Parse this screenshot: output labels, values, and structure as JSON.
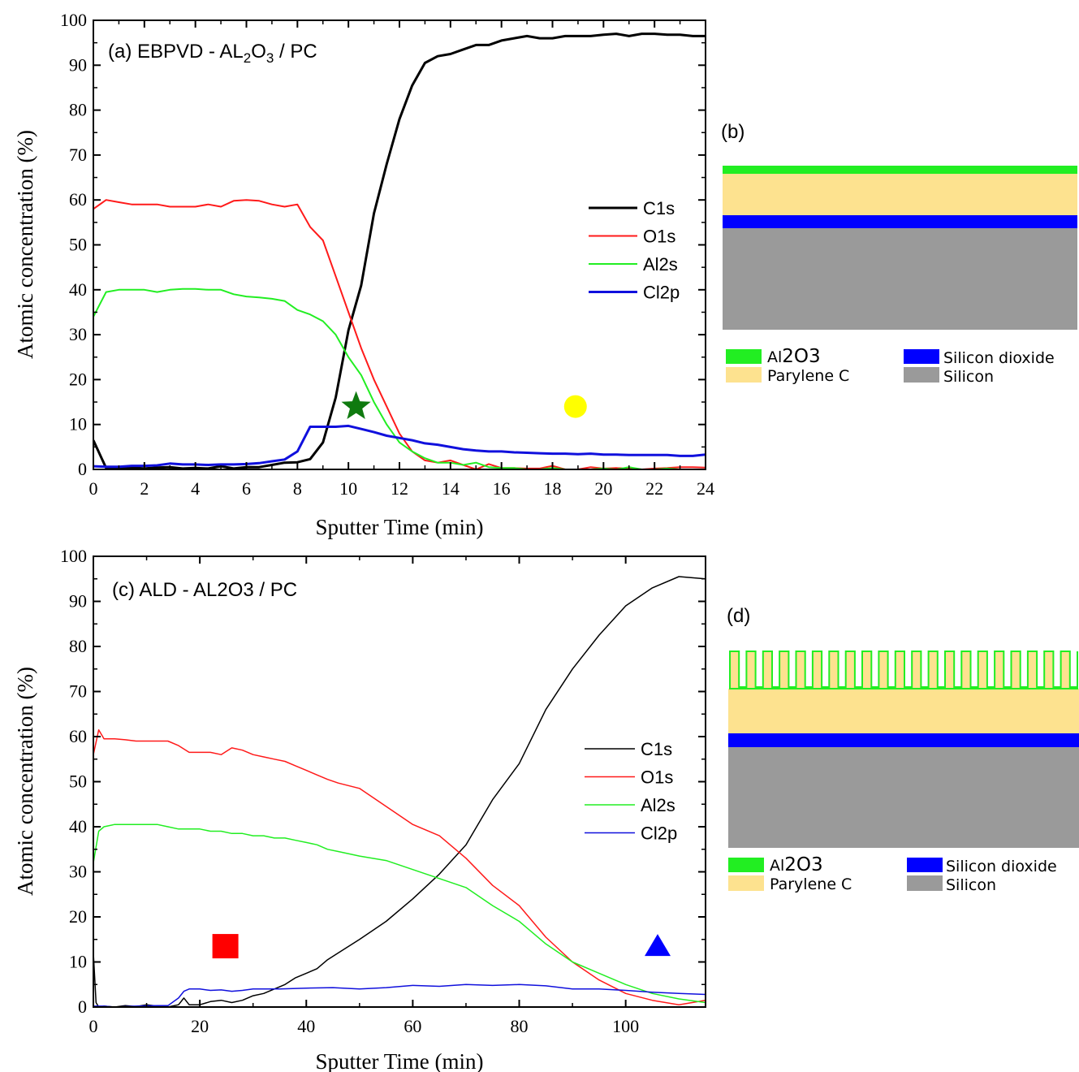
{
  "chart_data": [
    {
      "type": "line",
      "panel_label": "(a) EBPVD - AL",
      "title_sub1": "2",
      "title_mid": "O",
      "title_sub2": "3",
      "title_end": " / PC",
      "xlabel": "Sputter Time (min)",
      "ylabel": "Atomic concentration (%)",
      "xlim": [
        0,
        24
      ],
      "ylim": [
        0,
        100
      ],
      "xticks": [
        "0",
        "2",
        "4",
        "6",
        "8",
        "10",
        "12",
        "14",
        "16",
        "18",
        "20",
        "22",
        "24"
      ],
      "yticks": [
        "0",
        "10",
        "20",
        "30",
        "40",
        "50",
        "60",
        "70",
        "80",
        "90",
        "100"
      ],
      "legend_position": "center-right",
      "series": [
        {
          "name": "C1s",
          "color": "#000000",
          "width": 3,
          "x": [
            0,
            0.5,
            1,
            1.5,
            2,
            2.5,
            3,
            3.5,
            4,
            4.5,
            5,
            5.5,
            6,
            6.5,
            7,
            7.5,
            8,
            8.5,
            9,
            9.5,
            10,
            10.5,
            11,
            11.5,
            12,
            12.5,
            13,
            13.5,
            14,
            14.5,
            15,
            15.5,
            16,
            16.5,
            17,
            17.5,
            18,
            18.5,
            19,
            19.5,
            20,
            20.5,
            21,
            21.5,
            22,
            22.5,
            23,
            23.5,
            24
          ],
          "y": [
            6.5,
            0.3,
            0.3,
            0.4,
            0.2,
            0.4,
            0.5,
            0.2,
            0.3,
            0.2,
            0.7,
            0.2,
            0.5,
            0.5,
            1.0,
            1.5,
            1.6,
            2.3,
            6,
            16,
            31,
            41,
            57,
            68,
            78,
            85.5,
            90.5,
            92,
            92.5,
            93.5,
            94.5,
            94.5,
            95.5,
            96,
            96.5,
            96,
            96,
            96.5,
            96.5,
            96.5,
            96.8,
            97,
            96.5,
            97,
            97,
            96.8,
            96.8,
            96.5,
            96.5
          ]
        },
        {
          "name": "O1s",
          "color": "#ff1a1a",
          "width": 2,
          "x": [
            0,
            0.5,
            1,
            1.5,
            2,
            2.5,
            3,
            3.5,
            4,
            4.5,
            5,
            5.5,
            6,
            6.5,
            7,
            7.5,
            8,
            8.5,
            9,
            9.5,
            10,
            10.5,
            11,
            11.5,
            12,
            12.5,
            13,
            13.5,
            14,
            14.5,
            15,
            15.5,
            16,
            16.5,
            17,
            17.5,
            18,
            18.5,
            19,
            19.5,
            20,
            20.5,
            21,
            21.5,
            22,
            22.5,
            23,
            23.5,
            24
          ],
          "y": [
            58,
            60,
            59.5,
            59,
            59,
            59,
            58.5,
            58.5,
            58.5,
            59,
            58.5,
            59.8,
            60,
            59.8,
            59,
            58.5,
            59,
            54,
            51,
            43,
            35,
            27,
            20,
            14,
            8,
            4,
            2,
            1.5,
            2,
            1,
            0,
            1.2,
            0.3,
            0.3,
            0.2,
            0.2,
            0.8,
            0,
            0,
            0.5,
            0.2,
            0.3,
            0.2,
            0,
            0.2,
            0.3,
            0.5,
            0.5,
            0.4
          ]
        },
        {
          "name": "Al2s",
          "color": "#22ee22",
          "width": 2,
          "x": [
            0,
            0.5,
            1,
            1.5,
            2,
            2.5,
            3,
            3.5,
            4,
            4.5,
            5,
            5.5,
            6,
            6.5,
            7,
            7.5,
            8,
            8.5,
            9,
            9.5,
            10,
            10.5,
            11,
            11.5,
            12,
            12.5,
            13,
            13.5,
            14,
            14.5,
            15,
            15.5,
            16,
            16.5,
            17,
            17.5,
            18,
            18.5,
            19,
            19.5,
            20,
            20.5,
            21,
            21.5,
            22,
            22.5,
            23,
            23.5,
            24
          ],
          "y": [
            34,
            39.5,
            40,
            40,
            40,
            39.5,
            40,
            40.2,
            40.2,
            40,
            40,
            39,
            38.5,
            38.3,
            38,
            37.5,
            35.5,
            34.5,
            33,
            30,
            25,
            21,
            15,
            10,
            6,
            4,
            2.5,
            1.5,
            1.5,
            1,
            1.5,
            0.5,
            0.3,
            0.3,
            0,
            0,
            0.3,
            0,
            0,
            0,
            0.2,
            0,
            0.5,
            0,
            0,
            0.2,
            0,
            0,
            0
          ]
        },
        {
          "name": "Cl2p",
          "color": "#1010dd",
          "width": 3,
          "x": [
            0,
            0.5,
            1,
            1.5,
            2,
            2.5,
            3,
            3.5,
            4,
            4.5,
            5,
            5.5,
            6,
            6.5,
            7,
            7.5,
            8,
            8.5,
            9,
            9.5,
            10,
            10.5,
            11,
            11.5,
            12,
            12.5,
            13,
            13.5,
            14,
            14.5,
            15,
            15.5,
            16,
            16.5,
            17,
            17.5,
            18,
            18.5,
            19,
            19.5,
            20,
            20.5,
            21,
            21.5,
            22,
            22.5,
            23,
            23.5,
            24
          ],
          "y": [
            0.7,
            0.6,
            0.6,
            0.8,
            0.8,
            0.9,
            1.3,
            1.1,
            1.1,
            1.0,
            1.1,
            1.1,
            1.2,
            1.4,
            1.8,
            2.2,
            4,
            9.5,
            9.5,
            9.5,
            9.7,
            9,
            8.3,
            7.5,
            7,
            6.5,
            5.8,
            5.5,
            5,
            4.5,
            4.2,
            4,
            4,
            3.8,
            3.7,
            3.6,
            3.5,
            3.5,
            3.4,
            3.5,
            3.3,
            3.3,
            3.2,
            3.2,
            3.2,
            3.2,
            3,
            3,
            3.3
          ]
        }
      ],
      "markers": [
        {
          "shape": "star",
          "x": 10.3,
          "y": 14,
          "color": "#0f7a0f"
        },
        {
          "shape": "circle",
          "x": 18.9,
          "y": 14,
          "color": "#ffff00"
        }
      ]
    },
    {
      "type": "line",
      "panel_label": "(c) ALD - AL2O3 / PC",
      "xlabel": "Sputter Time (min)",
      "ylabel": "Atomic concentration (%)",
      "xlim": [
        0,
        115
      ],
      "ylim": [
        0,
        100
      ],
      "xticks": [
        "0",
        "20",
        "40",
        "60",
        "80",
        "100"
      ],
      "yticks": [
        "0",
        "10",
        "20",
        "30",
        "40",
        "50",
        "60",
        "70",
        "80",
        "90",
        "100"
      ],
      "legend_position": "center-right",
      "series": [
        {
          "name": "C1s",
          "color": "#000000",
          "width": 1.5,
          "x": [
            0,
            0.5,
            1,
            2,
            4,
            6,
            8,
            10,
            12,
            14,
            16,
            17,
            18,
            20,
            22,
            24,
            26,
            28,
            30,
            32,
            34,
            36,
            38,
            40,
            42,
            44,
            46,
            50,
            55,
            60,
            65,
            70,
            75,
            80,
            85,
            90,
            95,
            100,
            105,
            110,
            115
          ],
          "y": [
            12,
            1,
            0,
            0.2,
            0,
            0.3,
            0.1,
            0.5,
            0.2,
            0,
            0.5,
            2,
            0.5,
            0.5,
            1.2,
            1.5,
            1,
            1.5,
            2.5,
            3,
            4,
            5,
            6.5,
            7.5,
            8.5,
            10.5,
            12,
            15,
            19,
            24,
            29.5,
            36,
            46,
            54,
            66,
            75,
            82.5,
            89,
            93,
            95.5,
            95
          ]
        },
        {
          "name": "O1s",
          "color": "#ff1a1a",
          "width": 1.5,
          "x": [
            0,
            1,
            2,
            4,
            6,
            8,
            10,
            12,
            14,
            16,
            18,
            20,
            22,
            24,
            26,
            28,
            30,
            32,
            34,
            36,
            38,
            40,
            42,
            44,
            46,
            50,
            55,
            60,
            65,
            70,
            75,
            80,
            85,
            90,
            95,
            100,
            105,
            110,
            115
          ],
          "y": [
            56,
            61.5,
            59.5,
            59.5,
            59.3,
            59,
            59,
            59,
            59,
            58,
            56.5,
            56.5,
            56.5,
            56,
            57.5,
            57,
            56,
            55.5,
            55,
            54.5,
            53.5,
            52.5,
            51.5,
            50.5,
            49.7,
            48.5,
            44.5,
            40.5,
            38,
            33,
            27,
            22.5,
            15.5,
            10,
            6,
            3,
            1.5,
            0.5,
            1.5
          ]
        },
        {
          "name": "Al2s",
          "color": "#22ee22",
          "width": 1.5,
          "x": [
            0,
            1,
            2,
            4,
            6,
            8,
            10,
            12,
            14,
            16,
            18,
            20,
            22,
            24,
            26,
            28,
            30,
            32,
            34,
            36,
            38,
            40,
            42,
            44,
            46,
            50,
            55,
            60,
            65,
            70,
            75,
            80,
            85,
            90,
            95,
            100,
            105,
            110,
            115
          ],
          "y": [
            32,
            39,
            40,
            40.5,
            40.5,
            40.5,
            40.5,
            40.5,
            40,
            39.5,
            39.5,
            39.5,
            39,
            39,
            38.5,
            38.5,
            38,
            38,
            37.5,
            37.5,
            37,
            36.5,
            36,
            35,
            34.5,
            33.5,
            32.5,
            30.5,
            28.5,
            26.5,
            22.5,
            19,
            14,
            10,
            7.5,
            5,
            3,
            1.8,
            1
          ]
        },
        {
          "name": "Cl2p",
          "color": "#1010dd",
          "width": 1.5,
          "x": [
            0,
            2,
            4,
            8,
            12,
            14,
            16,
            17,
            18,
            20,
            22,
            24,
            26,
            28,
            30,
            35,
            40,
            45,
            50,
            55,
            60,
            65,
            70,
            75,
            80,
            85,
            90,
            95,
            100,
            105,
            110,
            115
          ],
          "y": [
            0.2,
            0.2,
            0,
            0.2,
            0.3,
            0.3,
            2,
            3.5,
            4,
            4,
            3.7,
            3.8,
            3.5,
            3.7,
            4,
            4,
            4.2,
            4.3,
            4,
            4.3,
            4.8,
            4.6,
            5,
            4.8,
            5,
            4.7,
            4,
            4,
            3.7,
            3.3,
            3,
            2.8
          ]
        }
      ],
      "markers": [
        {
          "shape": "square",
          "x": 24.8,
          "y": 13.5,
          "color": "#ff0000"
        },
        {
          "shape": "triangle",
          "x": 106,
          "y": 13.5,
          "color": "#0000ff"
        }
      ]
    }
  ],
  "diagram_b": {
    "label": "(b)",
    "legend": {
      "al2o3_pre": "Al",
      "al2o3_mid": "2O",
      "al2o3_end": "3",
      "parylene": "Parylene C",
      "sio2": "Silicon dioxide",
      "silicon": "Silicon"
    }
  },
  "diagram_d": {
    "label": "(d)",
    "legend": {
      "al2o3_pre": "Al",
      "al2o3_mid": "2O",
      "al2o3_end": "3",
      "parylene": "Parylene C",
      "sio2": "Silicon dioxide",
      "silicon": "Silicon"
    }
  },
  "colors": {
    "al2o3": "#22ee22",
    "parylene": "#fde28f",
    "sio2": "#0000ff",
    "silicon": "#9a9a9a"
  }
}
